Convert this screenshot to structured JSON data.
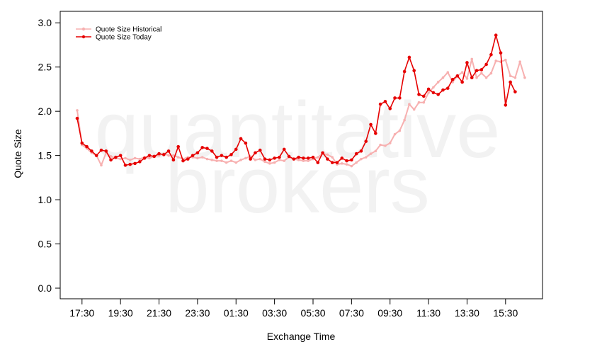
{
  "watermark": {
    "line1": "quantitative",
    "line2": "brokers"
  },
  "chart_data": {
    "type": "line",
    "title": "",
    "xlabel": "Exchange Time",
    "ylabel": "Quote Size",
    "x_tick_labels": [
      "17:30",
      "19:30",
      "21:30",
      "23:30",
      "01:30",
      "03:30",
      "05:30",
      "07:30",
      "09:30",
      "11:30",
      "13:30",
      "15:30"
    ],
    "y_ticks": [
      0.0,
      0.5,
      1.0,
      1.5,
      2.0,
      2.5,
      3.0
    ],
    "y_tick_labels": [
      "0.0",
      "0.5",
      "1.0",
      "1.5",
      "2.0",
      "2.5",
      "3.0"
    ],
    "ylim": [
      -0.12,
      3.13
    ],
    "legend_position": "top-left",
    "x_unit_minutes": 15,
    "x_start": "17:15",
    "series": [
      {
        "name": "Quote Size Historical",
        "color": "#f7b0b0",
        "values": [
          2.01,
          1.62,
          1.58,
          1.53,
          1.5,
          1.39,
          1.53,
          1.49,
          1.47,
          1.46,
          1.47,
          1.45,
          1.47,
          1.46,
          1.48,
          1.47,
          1.49,
          1.5,
          1.52,
          1.5,
          1.5,
          1.48,
          1.46,
          1.48,
          1.48,
          1.47,
          1.48,
          1.46,
          1.45,
          1.44,
          1.44,
          1.42,
          1.44,
          1.42,
          1.45,
          1.47,
          1.49,
          1.45,
          1.46,
          1.43,
          1.41,
          1.42,
          1.45,
          1.44,
          1.48,
          1.46,
          1.45,
          1.44,
          1.44,
          1.46,
          1.48,
          1.52,
          1.51,
          1.48,
          1.4,
          1.41,
          1.4,
          1.38,
          1.42,
          1.46,
          1.48,
          1.52,
          1.55,
          1.62,
          1.61,
          1.64,
          1.74,
          1.78,
          1.9,
          2.08,
          2.02,
          2.1,
          2.1,
          2.21,
          2.27,
          2.33,
          2.38,
          2.44,
          2.33,
          2.4,
          2.44,
          2.37,
          2.59,
          2.38,
          2.43,
          2.38,
          2.43,
          2.57,
          2.56,
          2.58,
          2.4,
          2.38,
          2.56,
          2.38
        ]
      },
      {
        "name": "Quote Size Today",
        "color": "#e60000",
        "values": [
          1.92,
          1.64,
          1.6,
          1.55,
          1.5,
          1.56,
          1.55,
          1.45,
          1.48,
          1.5,
          1.39,
          1.4,
          1.41,
          1.43,
          1.47,
          1.5,
          1.49,
          1.52,
          1.51,
          1.55,
          1.45,
          1.6,
          1.44,
          1.46,
          1.5,
          1.53,
          1.59,
          1.58,
          1.55,
          1.48,
          1.5,
          1.48,
          1.51,
          1.57,
          1.69,
          1.64,
          1.46,
          1.53,
          1.56,
          1.46,
          1.45,
          1.47,
          1.48,
          1.57,
          1.49,
          1.46,
          1.48,
          1.47,
          1.47,
          1.48,
          1.42,
          1.53,
          1.46,
          1.42,
          1.42,
          1.47,
          1.44,
          1.45,
          1.52,
          1.55,
          1.66,
          1.85,
          1.75,
          2.08,
          2.11,
          2.03,
          2.15,
          2.15,
          2.45,
          2.61,
          2.46,
          2.19,
          2.17,
          2.25,
          2.21,
          2.19,
          2.24,
          2.26,
          2.36,
          2.4,
          2.33,
          2.55,
          2.38,
          2.46,
          2.47,
          2.53,
          2.64,
          2.86,
          2.66,
          2.07,
          2.33,
          2.22
        ]
      }
    ]
  }
}
